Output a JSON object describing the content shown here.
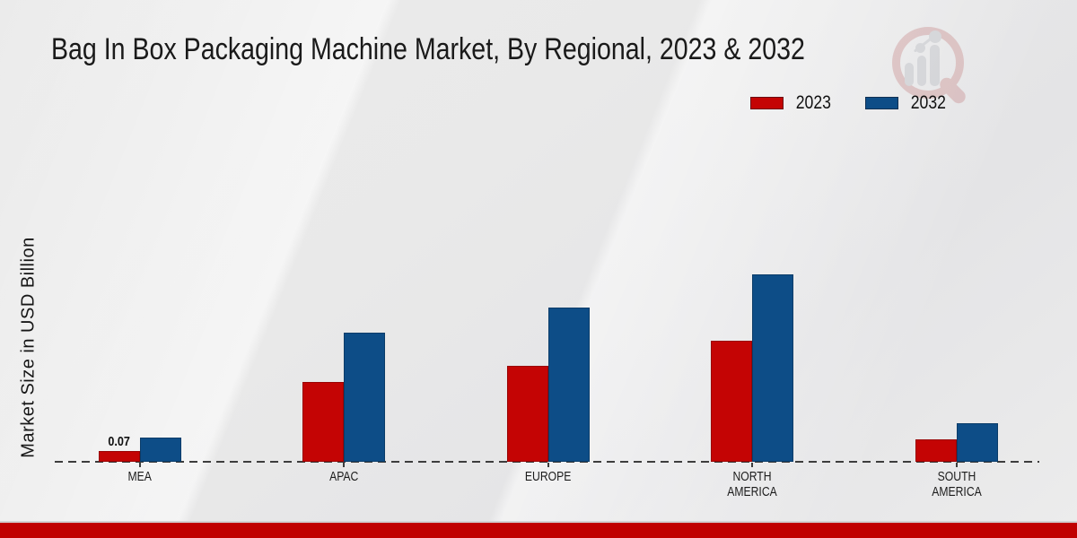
{
  "title": "Bag In Box Packaging Machine Market, By Regional, 2023 & 2032",
  "ylabel": "Market Size in USD Billion",
  "legend": {
    "position": "top-right"
  },
  "chart_data": {
    "type": "bar",
    "title": "Bag In Box Packaging Machine Market, By Regional, 2023 & 2032",
    "ylabel": "Market Size in USD Billion",
    "xlabel": "",
    "categories": [
      "MEA",
      "APAC",
      "EUROPE",
      "NORTH AMERICA",
      "SOUTH AMERICA"
    ],
    "series": [
      {
        "name": "2023",
        "color": "#c40404",
        "values": [
          0.07,
          0.53,
          0.64,
          0.81,
          0.15
        ]
      },
      {
        "name": "2032",
        "color": "#0d4d87",
        "values": [
          0.16,
          0.86,
          1.03,
          1.25,
          0.26
        ]
      }
    ],
    "bar_label": {
      "series_index": 0,
      "category_index": 0,
      "text": "0.07"
    },
    "ylim": [
      0,
      1.45
    ],
    "grid": false,
    "axis_ticks_visible": false,
    "baseline_style": "dashed",
    "baseline_color": "#3d3d3d",
    "legend_position": "top-right"
  },
  "watermark": {
    "name": "market-research-magnifier-logo"
  },
  "footer": {
    "color": "#c00000"
  }
}
